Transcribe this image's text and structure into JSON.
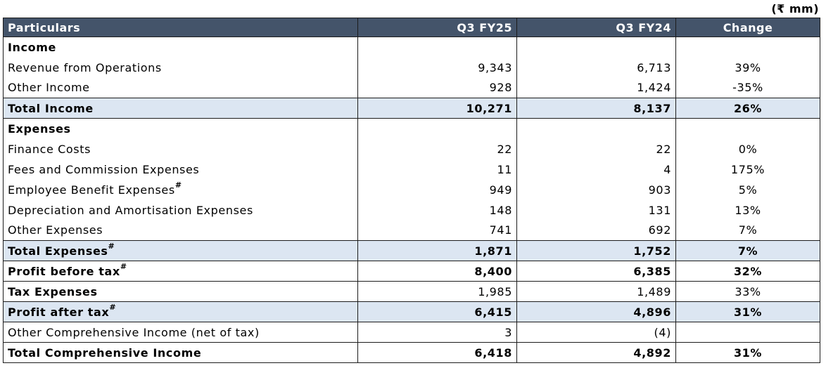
{
  "unit_label": "(₹ mm)",
  "header": {
    "particulars": "Particulars",
    "col1": "Q3 FY25",
    "col2": "Q3 FY24",
    "col3": "Change"
  },
  "rows": [
    {
      "label": "Income",
      "sup": "",
      "v1": "",
      "v2": "",
      "chg": "",
      "bold": true,
      "shaded": false
    },
    {
      "label": "Revenue from Operations",
      "sup": "",
      "v1": "9,343",
      "v2": "6,713",
      "chg": "39%",
      "bold": false,
      "shaded": false
    },
    {
      "label": "Other Income",
      "sup": "",
      "v1": "928",
      "v2": "1,424",
      "chg": "-35%",
      "bold": false,
      "shaded": false
    },
    {
      "label": "Total Income",
      "sup": "",
      "v1": "10,271",
      "v2": "8,137",
      "chg": "26%",
      "bold": true,
      "shaded": true
    },
    {
      "label": "Expenses",
      "sup": "",
      "v1": "",
      "v2": "",
      "chg": "",
      "bold": true,
      "shaded": false
    },
    {
      "label": "Finance Costs",
      "sup": "",
      "v1": "22",
      "v2": "22",
      "chg": "0%",
      "bold": false,
      "shaded": false
    },
    {
      "label": "Fees and Commission Expenses",
      "sup": "",
      "v1": "11",
      "v2": "4",
      "chg": "175%",
      "bold": false,
      "shaded": false
    },
    {
      "label": "Employee Benefit Expenses",
      "sup": "#",
      "v1": "949",
      "v2": "903",
      "chg": "5%",
      "bold": false,
      "shaded": false
    },
    {
      "label": "Depreciation and Amortisation Expenses",
      "sup": "",
      "v1": "148",
      "v2": "131",
      "chg": "13%",
      "bold": false,
      "shaded": false
    },
    {
      "label": "Other Expenses",
      "sup": "",
      "v1": "741",
      "v2": "692",
      "chg": "7%",
      "bold": false,
      "shaded": false
    },
    {
      "label": "Total Expenses",
      "sup": "#",
      "v1": "1,871",
      "v2": "1,752",
      "chg": "7%",
      "bold": true,
      "shaded": true
    },
    {
      "label": "Profit before tax",
      "sup": "#",
      "v1": "8,400",
      "v2": "6,385",
      "chg": "32%",
      "bold": true,
      "shaded": false
    },
    {
      "label": "Tax Expenses",
      "sup": "",
      "v1": "1,985",
      "v2": "1,489",
      "chg": "33%",
      "bold": false,
      "boldLabel": true,
      "shaded": false
    },
    {
      "label": "Profit after tax",
      "sup": "#",
      "v1": "6,415",
      "v2": "4,896",
      "chg": "31%",
      "bold": true,
      "shaded": true
    },
    {
      "label": "Other Comprehensive Income (net of tax)",
      "sup": "",
      "v1": "3",
      "v2": "(4)",
      "chg": "",
      "bold": false,
      "shaded": false
    },
    {
      "label": "Total Comprehensive Income",
      "sup": "",
      "v1": "6,418",
      "v2": "4,892",
      "chg": "31%",
      "bold": true,
      "shaded": false
    }
  ],
  "colors": {
    "header_bg": "#44546a",
    "highlight_bg": "#dce6f2"
  }
}
